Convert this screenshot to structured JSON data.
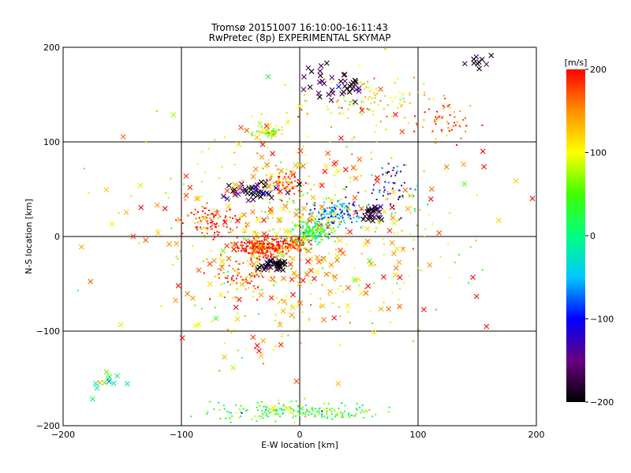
{
  "chart_data": {
    "type": "scatter",
    "title": "Tromsø 20151007 16:10:00-16:11:43",
    "subtitle": "RwPretec (8p) EXPERIMENTAL SKYMAP",
    "xlabel": "E-W location [km]",
    "ylabel": "N-S location [km]",
    "xlim": [
      -200,
      200
    ],
    "ylim": [
      -200,
      200
    ],
    "xticks": [
      -200,
      -100,
      0,
      100,
      200
    ],
    "yticks": [
      -200,
      -100,
      0,
      100,
      200
    ],
    "grid": true,
    "marker_types": [
      "dot",
      "x"
    ],
    "colorbar": {
      "label": "[m/s]",
      "min": -200,
      "max": 200,
      "ticks": [
        200,
        100,
        0,
        -100,
        -200
      ],
      "colormap": [
        "#000000",
        "#6a0080",
        "#0000ff",
        "#00c8ff",
        "#00ff80",
        "#40ff00",
        "#ffff00",
        "#ff9000",
        "#ff0000"
      ]
    },
    "clusters": [
      {
        "x": -30,
        "y": -12,
        "spread_x": 18,
        "spread_y": 8,
        "velocity": 190,
        "marker": "dot",
        "count": 260
      },
      {
        "x": -5,
        "y": -7,
        "spread_x": 10,
        "spread_y": 6,
        "velocity": 185,
        "marker": "dot",
        "count": 90
      },
      {
        "x": 10,
        "y": 5,
        "spread_x": 14,
        "spread_y": 10,
        "velocity": 15,
        "marker": "dot",
        "count": 170
      },
      {
        "x": 30,
        "y": 25,
        "spread_x": 18,
        "spread_y": 12,
        "velocity": -70,
        "marker": "dot",
        "count": 150
      },
      {
        "x": 80,
        "y": 50,
        "spread_x": 18,
        "spread_y": 25,
        "velocity": -110,
        "marker": "dot",
        "count": 60
      },
      {
        "x": -15,
        "y": 55,
        "spread_x": 15,
        "spread_y": 12,
        "velocity": 170,
        "marker": "dot",
        "count": 90
      },
      {
        "x": -25,
        "y": 110,
        "spread_x": 10,
        "spread_y": 4,
        "velocity": 70,
        "marker": "dot",
        "count": 60
      },
      {
        "x": 60,
        "y": 145,
        "spread_x": 40,
        "spread_y": 20,
        "velocity": 120,
        "marker": "dot",
        "count": 110
      },
      {
        "x": 120,
        "y": 120,
        "spread_x": 20,
        "spread_y": 15,
        "velocity": 150,
        "marker": "dot",
        "count": 60
      },
      {
        "x": 0,
        "y": -185,
        "spread_x": 60,
        "spread_y": 8,
        "velocity": 40,
        "marker": "dot",
        "count": 200
      },
      {
        "x": -45,
        "y": -40,
        "spread_x": 25,
        "spread_y": 15,
        "velocity": 160,
        "marker": "dot",
        "count": 100
      },
      {
        "x": -75,
        "y": 15,
        "spread_x": 20,
        "spread_y": 12,
        "velocity": 190,
        "marker": "dot",
        "count": 90
      },
      {
        "x": 0,
        "y": 0,
        "spread_x": 100,
        "spread_y": 100,
        "velocity": 100,
        "marker": "dot",
        "count": 400
      },
      {
        "x": -20,
        "y": -30,
        "spread_x": 10,
        "spread_y": 6,
        "velocity": -195,
        "marker": "x",
        "count": 35
      },
      {
        "x": -40,
        "y": 48,
        "spread_x": 20,
        "spread_y": 10,
        "velocity": -190,
        "marker": "x",
        "count": 40
      },
      {
        "x": 30,
        "y": 160,
        "spread_x": 30,
        "spread_y": 15,
        "velocity": -190,
        "marker": "x",
        "count": 40
      },
      {
        "x": 60,
        "y": 25,
        "spread_x": 10,
        "spread_y": 8,
        "velocity": -195,
        "marker": "x",
        "count": 25
      },
      {
        "x": 150,
        "y": 185,
        "spread_x": 15,
        "spread_y": 6,
        "velocity": -200,
        "marker": "x",
        "count": 10
      },
      {
        "x": 0,
        "y": 0,
        "spread_x": 110,
        "spread_y": 110,
        "velocity": 150,
        "marker": "x",
        "count": 260
      },
      {
        "x": -170,
        "y": -155,
        "spread_x": 20,
        "spread_y": 10,
        "velocity": 30,
        "marker": "x",
        "count": 12
      }
    ]
  }
}
